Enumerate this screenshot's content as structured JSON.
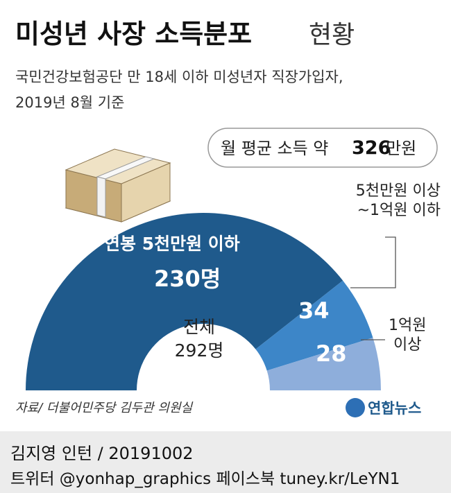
{
  "chart_data": {
    "type": "half_donut",
    "title": "미성년 사장 소득분포",
    "title_suffix": "현황",
    "subtitle": [
      "국민건강보험공단 만 18세 이하 미성년자 직장가입자,",
      "2019년 8월 기준"
    ],
    "annotation": {
      "prefix": "월 평균 소득 약",
      "value": 326,
      "unit": "만원"
    },
    "categories": [
      "연봉 5천만원 이하",
      "5천만원 이상\n~1억원 이하",
      "1억원\n이상"
    ],
    "values": [
      230,
      34,
      28
    ],
    "value_labels": [
      "230명",
      "34",
      "28"
    ],
    "colors": [
      "#1f5a8c",
      "#3d86c8",
      "#8eaedb"
    ],
    "center_label": "전체",
    "total": 292,
    "total_label": "292명"
  },
  "source": "자료/ 더불어민주당 김두관 의원실",
  "logo": "연합뉴스",
  "footer": {
    "author": "김지영 인턴 / 20191002",
    "social": "트위터 @yonhap_graphics  페이스북 tuney.kr/LeYN1"
  }
}
